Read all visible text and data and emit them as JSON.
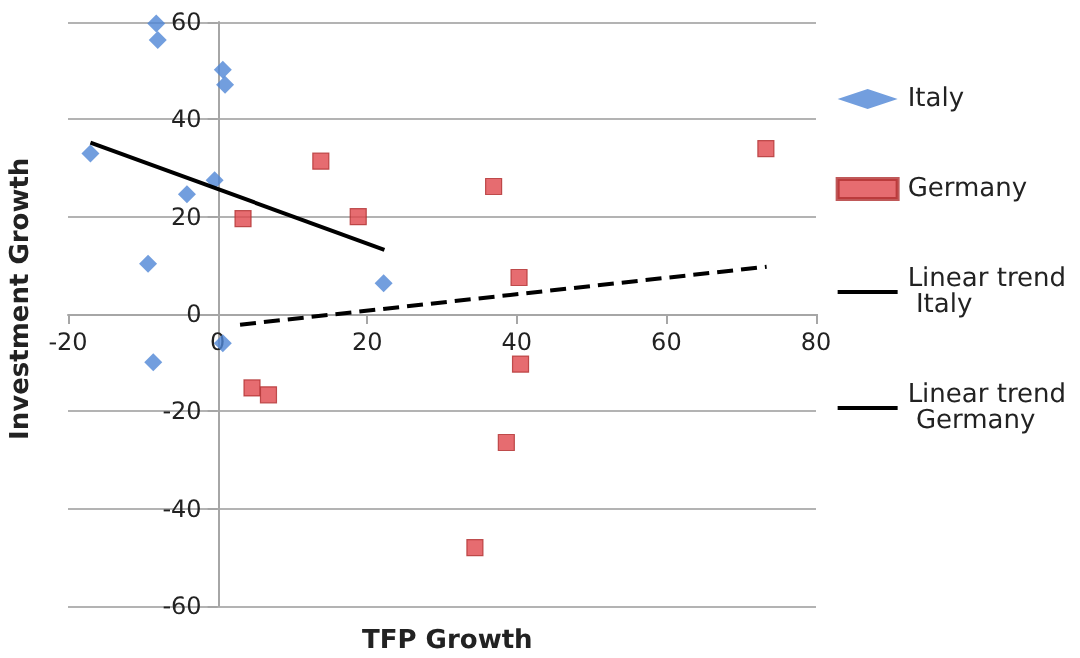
{
  "chart_data": {
    "type": "scatter",
    "xlabel": "TFP Growth",
    "ylabel": "Investment Growth",
    "xlim": [
      -20,
      80
    ],
    "xticks": [
      -20,
      0,
      20,
      40,
      60,
      80
    ],
    "ylim": [
      -60,
      60
    ],
    "yticks": [
      -60,
      -40,
      -20,
      0,
      20,
      40,
      60
    ],
    "grid": "y",
    "legend": "right",
    "series": [
      {
        "name": "Italy",
        "color": "#4f86d6",
        "marker": "diamond",
        "x": [
          -17,
          -8.2,
          -8,
          0.7,
          1,
          -0.4,
          -4.1,
          -9.3,
          22.2,
          0.7,
          -8.6
        ],
        "values": [
          33,
          59.7,
          56.3,
          50.2,
          47.1,
          27.5,
          24.6,
          10.3,
          6.3,
          -6,
          -9.9
        ]
      },
      {
        "name": "Germany",
        "color": "#e0474c",
        "marker": "square",
        "x": [
          3.4,
          13.8,
          18.8,
          36.9,
          40.3,
          73.3,
          4.6,
          6.8,
          40.5,
          38.6,
          34.4
        ],
        "values": [
          19.6,
          31.4,
          20,
          26.2,
          7.5,
          34,
          -15.2,
          -16.6,
          -10.3,
          -26.4,
          -48
        ]
      },
      {
        "name": "Linear trend Italy",
        "type": "line",
        "color": "#000000",
        "marker": "none",
        "line_style": "solid",
        "x": [
          -17,
          22.3
        ],
        "values": [
          35.2,
          13.2
        ]
      },
      {
        "name": "Linear trend Germany",
        "type": "line",
        "color": "#000000",
        "marker": "none",
        "line_style": "dashed",
        "x": [
          3,
          73.4
        ],
        "values": [
          -2.2,
          9.7
        ]
      }
    ]
  }
}
